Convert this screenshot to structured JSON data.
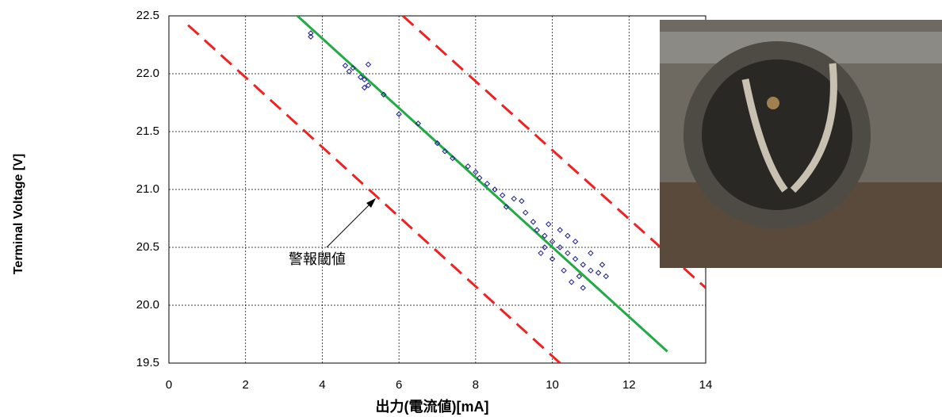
{
  "chart_data": {
    "type": "scatter",
    "xlabel": "出力(電流値)[mA]",
    "ylabel": "Terminal Voltage [V]",
    "annotation": "警報閾値",
    "xlim": [
      0,
      14
    ],
    "xticks": [
      0,
      2,
      4,
      6,
      8,
      10,
      12,
      14
    ],
    "ylim": [
      19.5,
      22.5
    ],
    "yticks": [
      19.5,
      {
        "value": 20,
        "label": "20.0"
      },
      20.5,
      {
        "value": 21,
        "label": "21.0"
      },
      21.5,
      {
        "value": 22,
        "label": "22.0"
      },
      22.5
    ],
    "grid": true,
    "series": [
      {
        "color": "#1a1a8c",
        "x": [
          3.7,
          3.7,
          4.6,
          4.7,
          4.8,
          5.0,
          5.1,
          5.2,
          5.1,
          5.2,
          5.6,
          6.0,
          6.5,
          7.0,
          7.2,
          7.4,
          7.8,
          8.0,
          8.1,
          8.3,
          8.5,
          8.7,
          9.0,
          9.2,
          8.8,
          9.3,
          9.5,
          9.6,
          9.8,
          10.0,
          10.2,
          10.4,
          10.6,
          10.8,
          11.0,
          11.2,
          11.4,
          10.5,
          10.8,
          10.3,
          10.0,
          9.8,
          10.6,
          11.0,
          10.2,
          9.9,
          10.7,
          11.3,
          10.4,
          9.7
        ],
        "y": [
          22.35,
          22.32,
          22.07,
          22.02,
          22.05,
          21.97,
          21.95,
          22.08,
          21.88,
          21.9,
          21.82,
          21.65,
          21.57,
          21.4,
          21.33,
          21.27,
          21.2,
          21.15,
          21.1,
          21.05,
          21.0,
          20.95,
          20.92,
          20.9,
          20.85,
          20.8,
          20.72,
          20.65,
          20.6,
          20.55,
          20.5,
          20.45,
          20.4,
          20.35,
          20.3,
          20.28,
          20.25,
          20.2,
          20.15,
          20.3,
          20.4,
          20.5,
          20.55,
          20.45,
          20.65,
          20.7,
          20.25,
          20.35,
          20.6,
          20.45
        ]
      }
    ],
    "lines": [
      {
        "color": "#22aa44",
        "dashed": false,
        "x": [
          3.35,
          13.0
        ],
        "y": [
          22.5,
          19.6
        ]
      },
      {
        "color": "#ee2222",
        "dashed": true,
        "x": [
          0.5,
          10.2
        ],
        "y": [
          22.42,
          19.5
        ]
      },
      {
        "color": "#ee2222",
        "dashed": true,
        "x": [
          6.1,
          14.0
        ],
        "y": [
          22.5,
          20.15
        ]
      }
    ]
  }
}
